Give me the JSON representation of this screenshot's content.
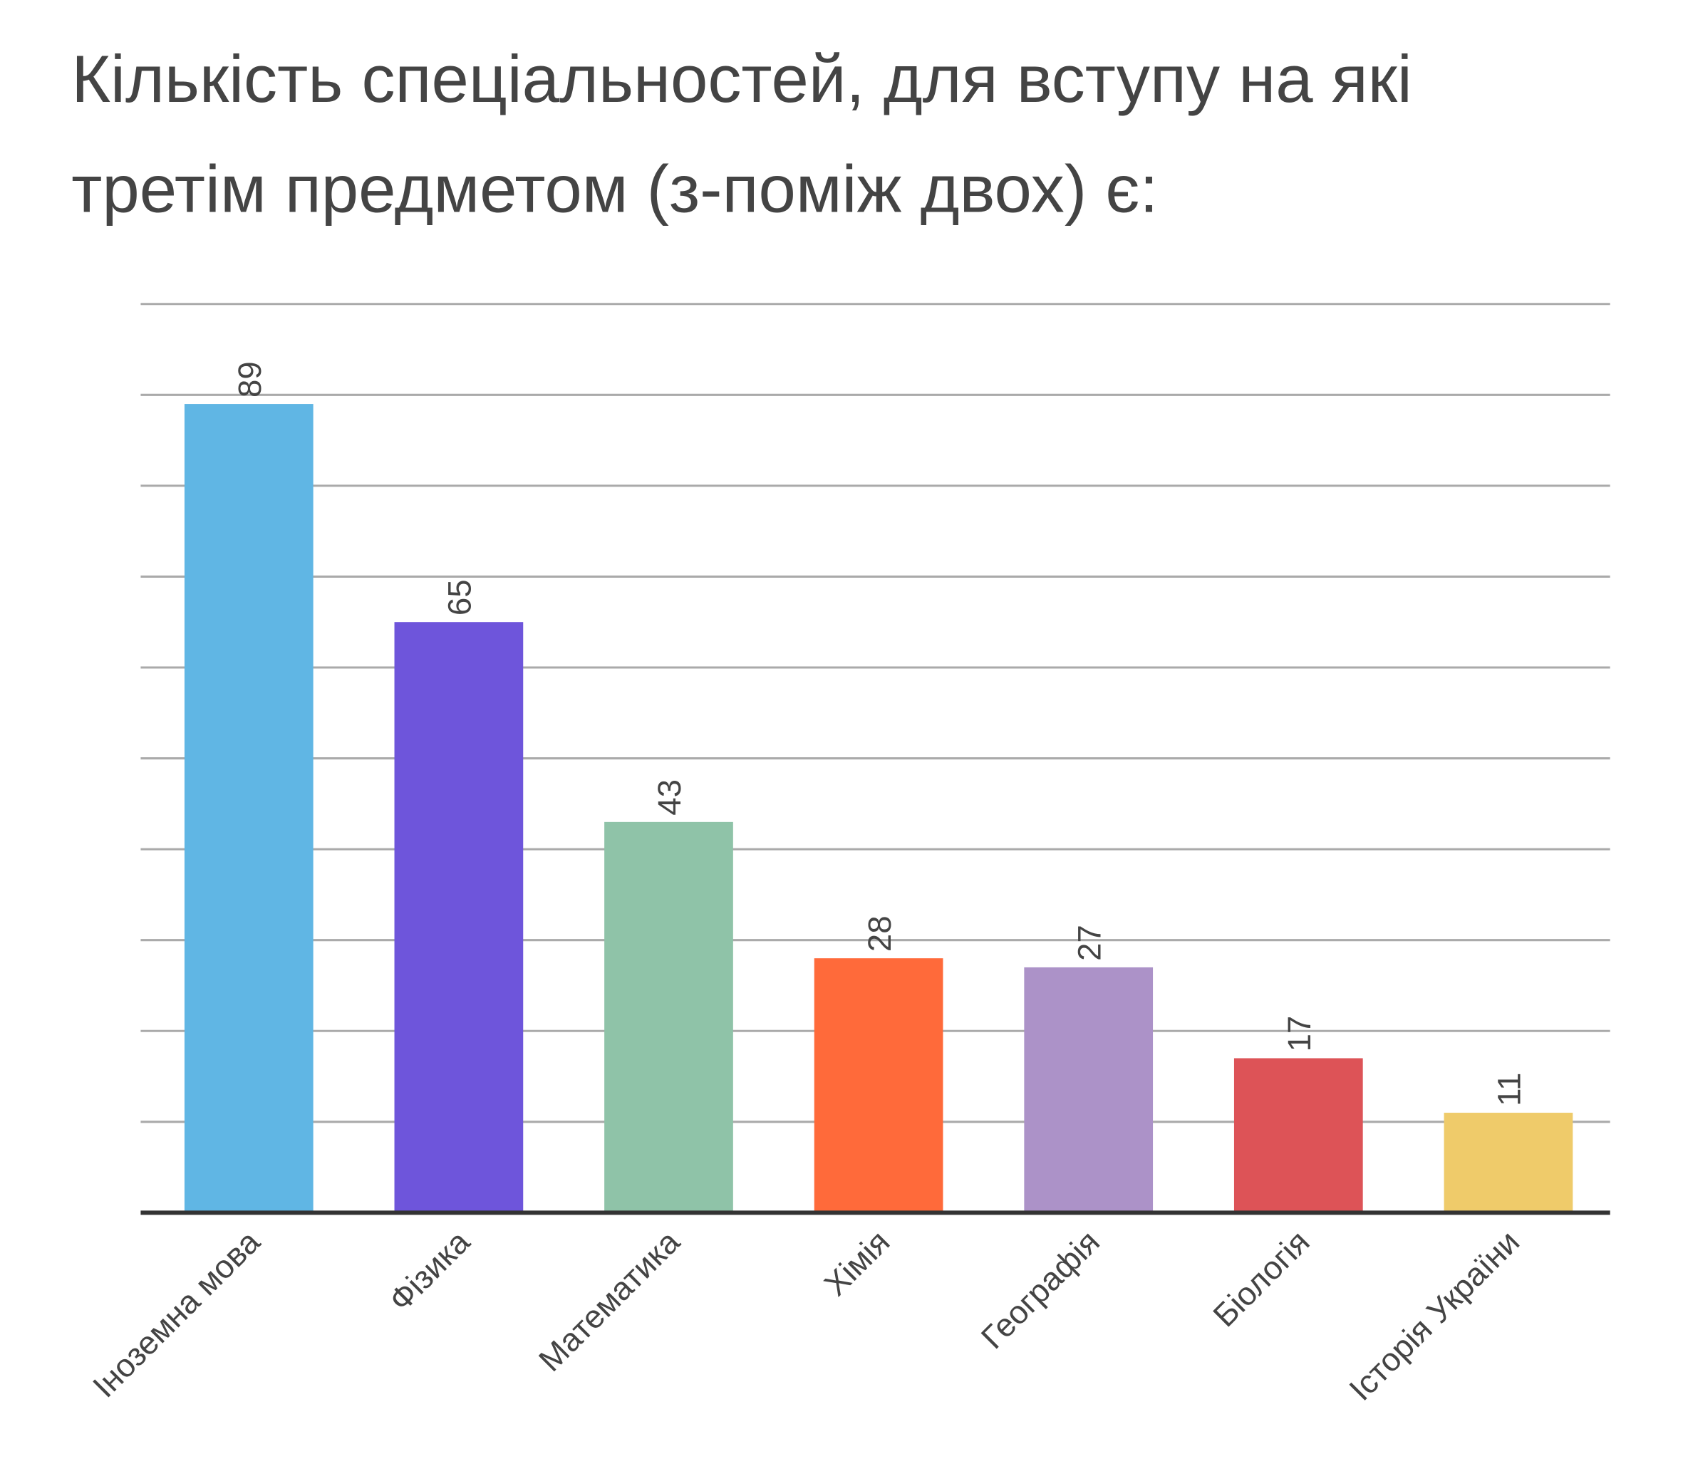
{
  "chart_data": {
    "type": "bar",
    "title_lines": [
      "Кількість спеціальностей, для вступу на які",
      "третім предметом (з-поміж двох) є:"
    ],
    "categories": [
      "Іноземна мова",
      "Фізика",
      "Математика",
      "Хімія",
      "Географія",
      "Біологія",
      "Історія України"
    ],
    "values": [
      89,
      65,
      43,
      28,
      27,
      17,
      11
    ],
    "colors": [
      "#60B6E4",
      "#6E55DB",
      "#8FC3A8",
      "#FF6A3A",
      "#AC92C8",
      "#DD5357",
      "#EFCB6A"
    ],
    "xlabel": "",
    "ylabel": "",
    "ylim": [
      0,
      100
    ],
    "grid_step": 10,
    "grid": true,
    "data_labels": true,
    "legend": "none"
  }
}
